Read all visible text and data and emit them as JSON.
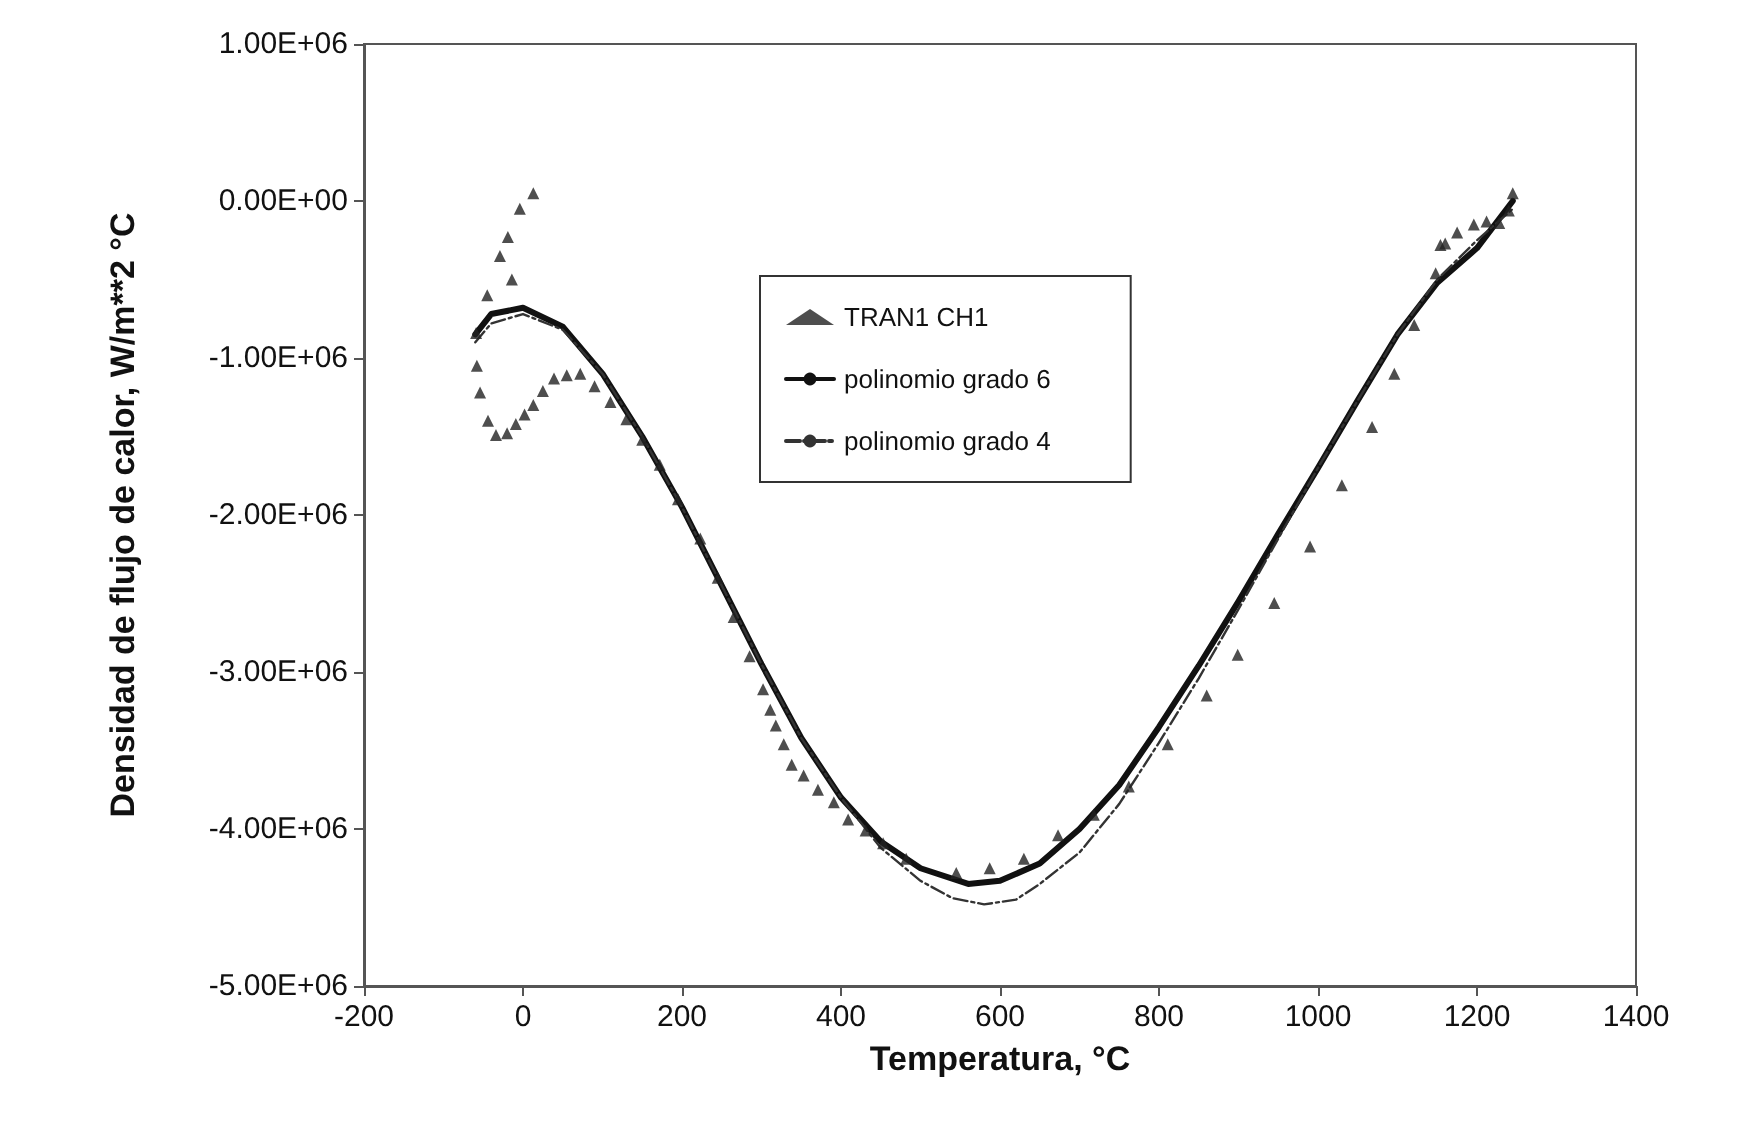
{
  "chart_data": {
    "type": "line",
    "xlabel": "Temperatura, °C",
    "ylabel": "Densidad de flujo de calor, W/m**2 °C",
    "xlim": [
      -200,
      1400
    ],
    "xticks": [
      -200,
      0,
      200,
      400,
      600,
      800,
      1000,
      1200,
      1400
    ],
    "ylim": [
      -5000000,
      1000000
    ],
    "yticks": [
      {
        "value": -5000000,
        "label": "-5.00E+06"
      },
      {
        "value": -4000000,
        "label": "-4.00E+06"
      },
      {
        "value": -3000000,
        "label": "-3.00E+06"
      },
      {
        "value": -2000000,
        "label": "-2.00E+06"
      },
      {
        "value": -1000000,
        "label": "-1.00E+06"
      },
      {
        "value": 0,
        "label": "0.00E+00"
      },
      {
        "value": 1000000,
        "label": "1.00E+06"
      }
    ],
    "grid": false,
    "legend": "top",
    "series": [
      {
        "name": "TRAN1 CH1",
        "type": "scatter",
        "marker": "triangle",
        "color": "#222222",
        "x": [
          13,
          -4,
          -19,
          -14,
          -29,
          -45,
          -59,
          -58,
          -54,
          -44,
          -34,
          -20,
          -9,
          2,
          13,
          25,
          39,
          55,
          72,
          90,
          110,
          130,
          150,
          172,
          195,
          223,
          245,
          265,
          285,
          302,
          311,
          318,
          328,
          338,
          353,
          371,
          391,
          409,
          431,
          453,
          482,
          545,
          587,
          630,
          673,
          718,
          762,
          811,
          860,
          899,
          945,
          990,
          1030,
          1068,
          1096,
          1121,
          1148,
          1160,
          1154,
          1175,
          1196,
          1212,
          1228,
          1240,
          1245
        ],
        "values": [
          50000,
          -50000,
          -230000,
          -500000,
          -350000,
          -600000,
          -840000,
          -1050000,
          -1220000,
          -1400000,
          -1490000,
          -1480000,
          -1420000,
          -1360000,
          -1300000,
          -1210000,
          -1130000,
          -1110000,
          -1100000,
          -1180000,
          -1280000,
          -1390000,
          -1520000,
          -1680000,
          -1900000,
          -2150000,
          -2400000,
          -2650000,
          -2900000,
          -3110000,
          -3240000,
          -3340000,
          -3460000,
          -3590000,
          -3660000,
          -3750000,
          -3830000,
          -3940000,
          -4010000,
          -4090000,
          -4190000,
          -4280000,
          -4250000,
          -4190000,
          -4040000,
          -3910000,
          -3730000,
          -3460000,
          -3150000,
          -2890000,
          -2560000,
          -2200000,
          -1810000,
          -1440000,
          -1100000,
          -790000,
          -460000,
          -270000,
          -280000,
          -200000,
          -150000,
          -130000,
          -140000,
          -60000,
          50000
        ]
      },
      {
        "name": "polinomio grado 6",
        "line_style": "solid",
        "color": "#111111",
        "x": [
          -60,
          -40,
          0,
          50,
          100,
          150,
          200,
          250,
          300,
          350,
          400,
          450,
          500,
          560,
          600,
          650,
          700,
          750,
          800,
          850,
          900,
          950,
          1000,
          1050,
          1100,
          1150,
          1200,
          1245
        ],
        "values": [
          -850000,
          -720000,
          -680000,
          -800000,
          -1100000,
          -1500000,
          -1950000,
          -2450000,
          -2950000,
          -3420000,
          -3800000,
          -4080000,
          -4250000,
          -4350000,
          -4330000,
          -4220000,
          -4000000,
          -3720000,
          -3350000,
          -2960000,
          -2550000,
          -2120000,
          -1700000,
          -1270000,
          -850000,
          -520000,
          -300000,
          0
        ]
      },
      {
        "name": "polinomio grado 4",
        "line_style": "dashed",
        "color": "#333333",
        "x": [
          -60,
          -40,
          0,
          50,
          100,
          150,
          200,
          250,
          300,
          350,
          400,
          450,
          500,
          540,
          580,
          620,
          650,
          700,
          750,
          800,
          850,
          900,
          950,
          1000,
          1050,
          1100,
          1150,
          1200,
          1245
        ],
        "values": [
          -900000,
          -780000,
          -720000,
          -820000,
          -1100000,
          -1500000,
          -1950000,
          -2450000,
          -2950000,
          -3420000,
          -3800000,
          -4120000,
          -4330000,
          -4440000,
          -4480000,
          -4450000,
          -4350000,
          -4150000,
          -3840000,
          -3450000,
          -3040000,
          -2600000,
          -2150000,
          -1700000,
          -1270000,
          -850000,
          -500000,
          -250000,
          -50000
        ]
      }
    ]
  }
}
